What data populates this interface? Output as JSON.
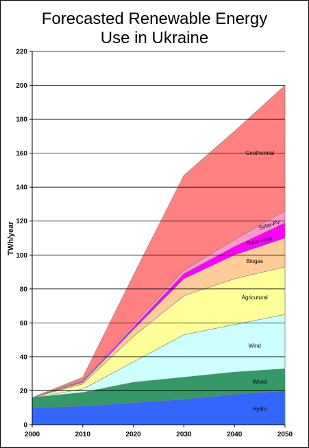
{
  "chart_data": {
    "type": "area",
    "stacked": true,
    "title_line1": "Forecasted Renewable Energy",
    "title_line2": "Use in Ukraine",
    "xlabel": "",
    "ylabel": "TWh/year",
    "x": [
      2000,
      2010,
      2020,
      2030,
      2040,
      2050
    ],
    "ylim": [
      0,
      220
    ],
    "yticks": [
      0,
      20,
      40,
      60,
      80,
      100,
      120,
      140,
      160,
      180,
      200,
      220
    ],
    "grid": "horizontal",
    "legend": "none (labels inside areas)",
    "series": [
      {
        "name": "Hydro",
        "color": "#3366ff",
        "values": [
          10,
          11,
          13,
          15,
          18,
          20
        ]
      },
      {
        "name": "Wood",
        "color": "#339966",
        "values": [
          6,
          8,
          12,
          13,
          13,
          13
        ]
      },
      {
        "name": "Wind",
        "color": "#ccffff",
        "values": [
          0,
          2,
          12,
          25,
          28,
          32
        ]
      },
      {
        "name": "Agricutural",
        "color": "#ffff99",
        "values": [
          0,
          3,
          15,
          23,
          27,
          28
        ]
      },
      {
        "name": "Biogas",
        "color": "#ffcc99",
        "values": [
          0,
          1,
          4,
          10,
          14,
          17
        ]
      },
      {
        "name": "Solar-Heat",
        "color": "#ff00ff",
        "values": [
          0,
          0.5,
          1.5,
          3,
          5,
          9
        ]
      },
      {
        "name": "Solar-PV",
        "color": "#ff99cc",
        "values": [
          0,
          0.5,
          1.5,
          2,
          4,
          7
        ]
      },
      {
        "name": "Geothermal",
        "color": "#ff8080",
        "values": [
          0,
          2,
          29,
          56,
          64,
          74
        ]
      }
    ]
  }
}
